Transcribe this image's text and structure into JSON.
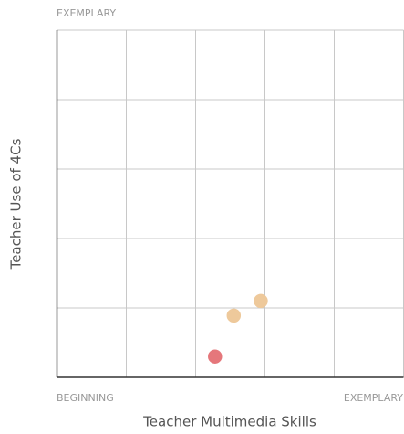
{
  "chart_data": {
    "type": "scatter",
    "x_label": "Teacher Multimedia Skills",
    "y_label": "Teacher Use of 4Cs",
    "x_start_label": "BEGINNING",
    "x_end_label": "EXEMPLARY",
    "y_end_label": "EXEMPLARY",
    "xlim": [
      0,
      5
    ],
    "ylim": [
      0,
      5
    ],
    "xticks": [
      0,
      1,
      2,
      3,
      4,
      5
    ],
    "yticks": [
      0,
      1,
      2,
      3,
      4,
      5
    ],
    "grid": true,
    "series": [
      {
        "x": [
          2.28,
          2.55,
          2.94
        ],
        "values": [
          0.3,
          0.89,
          1.1
        ],
        "colors": [
          "#ec7b7f",
          "#f5cfa0",
          "#f5cfa0"
        ]
      }
    ]
  }
}
